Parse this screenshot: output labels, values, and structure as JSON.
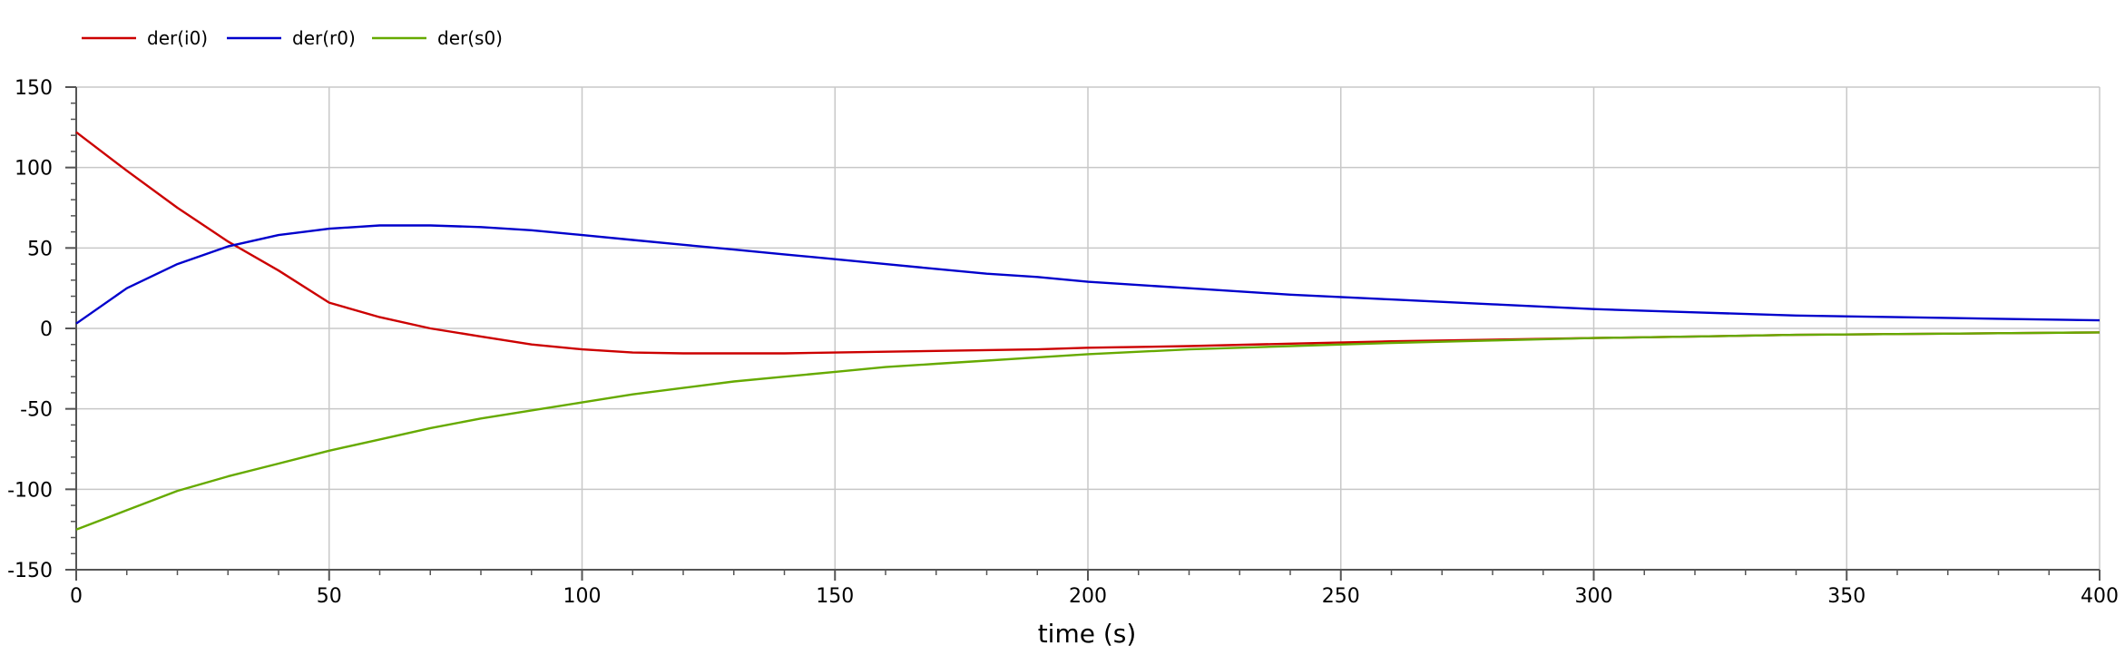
{
  "chart_data": {
    "type": "line",
    "title": "",
    "xlabel": "time (s)",
    "ylabel": "",
    "xlim": [
      0,
      400
    ],
    "ylim": [
      -150,
      150
    ],
    "xticks": [
      0,
      50,
      100,
      150,
      200,
      250,
      300,
      350,
      400
    ],
    "yticks": [
      -150,
      -100,
      -50,
      0,
      50,
      100,
      150
    ],
    "grid": true,
    "legend_position": "top-left",
    "series": [
      {
        "name": "der(i0)",
        "color": "#cc0000",
        "x": [
          0,
          10,
          20,
          30,
          40,
          50,
          60,
          70,
          80,
          90,
          100,
          110,
          120,
          130,
          140,
          150,
          160,
          170,
          180,
          190,
          200,
          220,
          240,
          260,
          280,
          300,
          320,
          340,
          360,
          380,
          400
        ],
        "y": [
          122,
          98,
          75,
          54,
          36,
          16,
          7,
          0,
          -5,
          -10,
          -13,
          -15,
          -15.5,
          -15.5,
          -15.5,
          -15,
          -14.5,
          -14,
          -13.5,
          -13,
          -12,
          -11,
          -9.5,
          -8,
          -7,
          -6,
          -5,
          -4,
          -3.5,
          -3,
          -2.5
        ]
      },
      {
        "name": "der(r0)",
        "color": "#0000cc",
        "x": [
          0,
          10,
          20,
          30,
          40,
          50,
          60,
          70,
          80,
          90,
          100,
          110,
          120,
          130,
          140,
          150,
          160,
          170,
          180,
          190,
          200,
          220,
          240,
          260,
          280,
          300,
          320,
          340,
          360,
          380,
          400
        ],
        "y": [
          3,
          25,
          40,
          51,
          58,
          62,
          64,
          64,
          63,
          61,
          58,
          55,
          52,
          49,
          46,
          43,
          40,
          37,
          34,
          32,
          29,
          25,
          21,
          18,
          15,
          12,
          10,
          8,
          7,
          6,
          5
        ]
      },
      {
        "name": "der(s0)",
        "color": "#66aa00",
        "x": [
          0,
          10,
          20,
          30,
          40,
          50,
          60,
          70,
          80,
          90,
          100,
          110,
          120,
          130,
          140,
          150,
          160,
          170,
          180,
          190,
          200,
          220,
          240,
          260,
          280,
          300,
          320,
          340,
          360,
          380,
          400
        ],
        "y": [
          -125,
          -113,
          -101,
          -92,
          -84,
          -76,
          -69,
          -62,
          -56,
          -51,
          -46,
          -41,
          -37,
          -33,
          -30,
          -27,
          -24,
          -22,
          -20,
          -18,
          -16,
          -13,
          -11,
          -9,
          -7.5,
          -6,
          -5,
          -4,
          -3.5,
          -3,
          -2.5
        ]
      }
    ]
  }
}
